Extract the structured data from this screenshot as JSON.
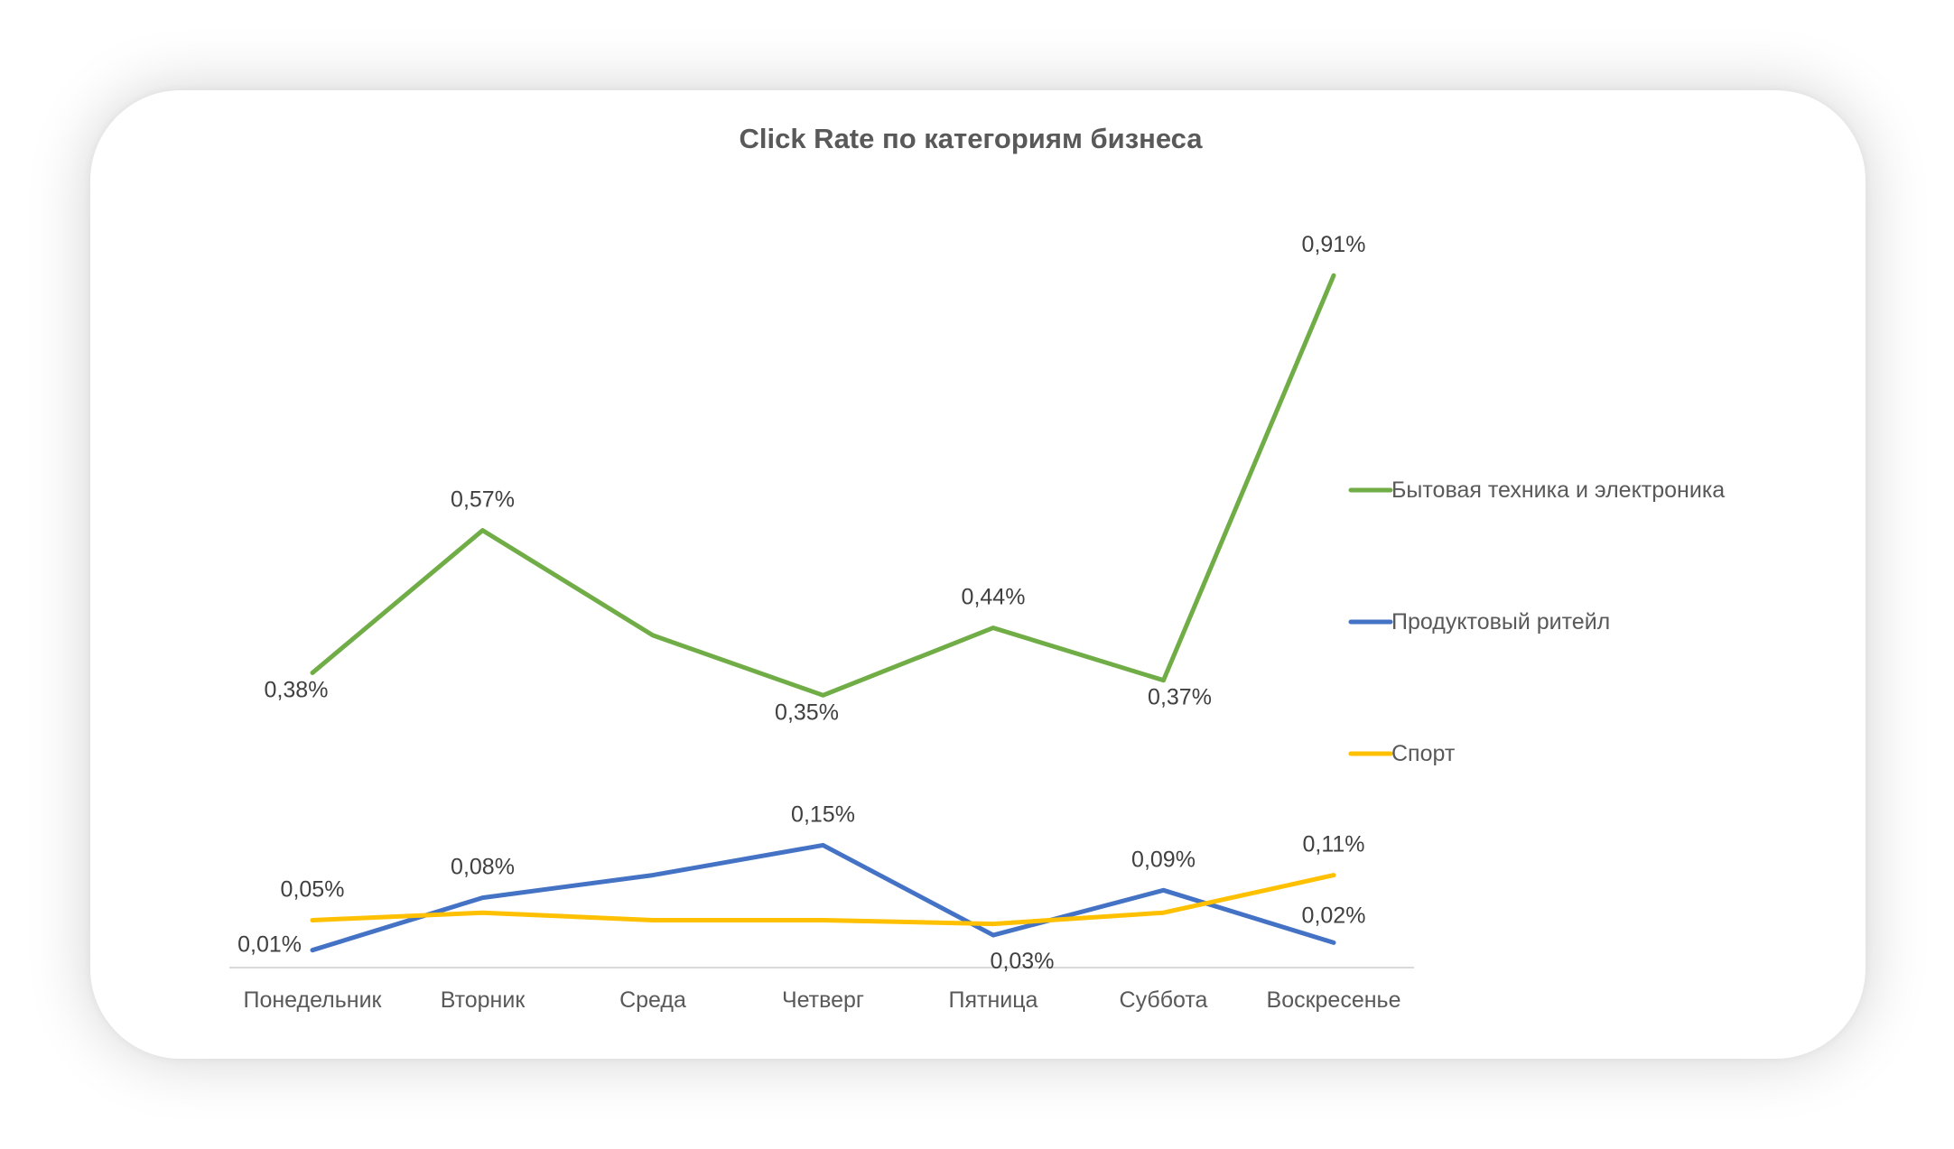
{
  "chart_data": {
    "type": "line",
    "title": "Click Rate по категориям бизнеса",
    "xlabel": "",
    "ylabel": "",
    "categories": [
      "Понедельник",
      "Вторник",
      "Среда",
      "Четверг",
      "Пятница",
      "Суббота",
      "Воскресенье"
    ],
    "ylim": [
      0,
      0.95
    ],
    "grid": false,
    "legend_position": "right",
    "series": [
      {
        "name": "Бытовая техника и электроника",
        "color": "#70ad47",
        "values": [
          0.38,
          0.57,
          0.43,
          0.35,
          0.44,
          0.37,
          0.91
        ],
        "labels": [
          "0,38%",
          "0,57%",
          "",
          "0,35%",
          "0,44%",
          "0,37%",
          "0,91%"
        ]
      },
      {
        "name": "Продуктовый ритейл",
        "color": "#4472c4",
        "values": [
          0.01,
          0.08,
          0.11,
          0.15,
          0.03,
          0.09,
          0.02
        ],
        "labels": [
          "0,01%",
          "0,08%",
          "",
          "0,15%",
          "0,03%",
          "0,09%",
          "0,02%"
        ]
      },
      {
        "name": "Спорт",
        "color": "#ffc000",
        "values": [
          0.05,
          0.06,
          0.05,
          0.05,
          0.045,
          0.06,
          0.11
        ],
        "labels": [
          "0,05%",
          "",
          "",
          "",
          "",
          "",
          "0,11%"
        ]
      }
    ]
  }
}
